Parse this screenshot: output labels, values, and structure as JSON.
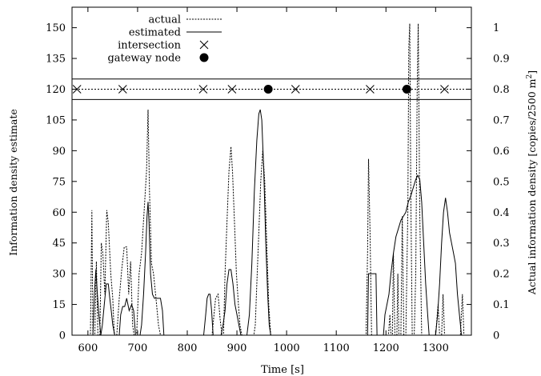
{
  "chart_data": {
    "type": "line",
    "title": "",
    "xlabel": "Time [s]",
    "ylabel_left": "Information density estimate",
    "ylabel_right_prefix": "Actual information density [copies/2500 m",
    "ylabel_right_sup": "2",
    "ylabel_right_suffix": "]",
    "xlim": [
      568,
      1372
    ],
    "ylim_left": [
      0,
      160
    ],
    "ylim_right": [
      0,
      1.06667
    ],
    "xticks": [
      600,
      700,
      800,
      900,
      1000,
      1100,
      1200,
      1300
    ],
    "xtick_labels": [
      "600",
      "700",
      "800",
      "900",
      "1000",
      "1100",
      "1200",
      "1300"
    ],
    "yticks_left": [
      0,
      15,
      30,
      45,
      60,
      75,
      90,
      105,
      120,
      135,
      150
    ],
    "ytick_labels_left": [
      "0",
      "15",
      "30",
      "45",
      "60",
      "75",
      "90",
      "105",
      "120",
      "135",
      "150"
    ],
    "yticks_right": [
      0,
      0.1,
      0.2,
      0.3,
      0.4,
      0.5,
      0.6,
      0.7,
      0.8,
      0.9,
      1.0
    ],
    "ytick_labels_right": [
      "0",
      "0.1",
      "0.2",
      "0.3",
      "0.4",
      "0.5",
      "0.6",
      "0.7",
      "0.8",
      "0.9",
      "1"
    ],
    "legend": {
      "placement": "top-left",
      "entries": [
        {
          "label": "actual",
          "style": "dotted"
        },
        {
          "label": "estimated",
          "style": "solid"
        },
        {
          "label": "intersection",
          "style": "x-marker"
        },
        {
          "label": "gateway node",
          "style": "filled-circle"
        }
      ]
    },
    "band": {
      "y_center": 120,
      "y_upper": 125,
      "y_lower": 115
    },
    "intersections_x": [
      578,
      670,
      832,
      890,
      1018,
      1168,
      1318
    ],
    "gateways_x": [
      963,
      1242
    ],
    "marker_y": 120,
    "series": [
      {
        "name": "actual",
        "style": "dotted",
        "points": [
          [
            596,
            0
          ],
          [
            605,
            0
          ],
          [
            608,
            61
          ],
          [
            610,
            0
          ],
          [
            614,
            0
          ],
          [
            617,
            36
          ],
          [
            620,
            0
          ],
          [
            624,
            0
          ],
          [
            627,
            45
          ],
          [
            630,
            40
          ],
          [
            634,
            20
          ],
          [
            638,
            61
          ],
          [
            641,
            55
          ],
          [
            646,
            30
          ],
          [
            650,
            18
          ],
          [
            653,
            0
          ],
          [
            658,
            0
          ],
          [
            663,
            18
          ],
          [
            668,
            32
          ],
          [
            673,
            43
          ],
          [
            678,
            43
          ],
          [
            682,
            20
          ],
          [
            686,
            36
          ],
          [
            690,
            5
          ],
          [
            693,
            0
          ],
          [
            698,
            0
          ],
          [
            703,
            30
          ],
          [
            708,
            40
          ],
          [
            713,
            60
          ],
          [
            718,
            80
          ],
          [
            721,
            110
          ],
          [
            724,
            70
          ],
          [
            728,
            35
          ],
          [
            732,
            30
          ],
          [
            737,
            18
          ],
          [
            742,
            5
          ],
          [
            746,
            0
          ],
          [
            850,
            0
          ],
          [
            853,
            8
          ],
          [
            857,
            18
          ],
          [
            862,
            20
          ],
          [
            866,
            8
          ],
          [
            870,
            0
          ],
          [
            873,
            0
          ],
          [
            876,
            30
          ],
          [
            880,
            55
          ],
          [
            884,
            80
          ],
          [
            888,
            92
          ],
          [
            891,
            80
          ],
          [
            895,
            55
          ],
          [
            899,
            30
          ],
          [
            903,
            15
          ],
          [
            906,
            5
          ],
          [
            910,
            0
          ],
          [
            934,
            0
          ],
          [
            937,
            5
          ],
          [
            940,
            25
          ],
          [
            944,
            50
          ],
          [
            948,
            75
          ],
          [
            952,
            90
          ],
          [
            956,
            75
          ],
          [
            960,
            45
          ],
          [
            964,
            15
          ],
          [
            968,
            0
          ],
          [
            1160,
            0
          ],
          [
            1163,
            40
          ],
          [
            1165,
            86
          ],
          [
            1168,
            50
          ],
          [
            1171,
            0
          ],
          [
            1185,
            0
          ],
          [
            1205,
            0
          ],
          [
            1208,
            10
          ],
          [
            1210,
            0
          ],
          [
            1213,
            0
          ],
          [
            1215,
            40
          ],
          [
            1218,
            0
          ],
          [
            1222,
            0
          ],
          [
            1224,
            30
          ],
          [
            1226,
            0
          ],
          [
            1230,
            0
          ],
          [
            1233,
            58
          ],
          [
            1236,
            0
          ],
          [
            1240,
            0
          ],
          [
            1244,
            60
          ],
          [
            1246,
            140
          ],
          [
            1248,
            152
          ],
          [
            1250,
            70
          ],
          [
            1253,
            0
          ],
          [
            1257,
            0
          ],
          [
            1260,
            30
          ],
          [
            1263,
            120
          ],
          [
            1265,
            152
          ],
          [
            1268,
            60
          ],
          [
            1272,
            0
          ],
          [
            1300,
            0
          ],
          [
            1305,
            15
          ],
          [
            1308,
            0
          ],
          [
            1312,
            0
          ],
          [
            1315,
            20
          ],
          [
            1318,
            0
          ],
          [
            1350,
            0
          ],
          [
            1354,
            20
          ],
          [
            1357,
            0
          ]
        ]
      },
      {
        "name": "estimated",
        "style": "solid",
        "points": [
          [
            610,
            0
          ],
          [
            613,
            20
          ],
          [
            616,
            32
          ],
          [
            619,
            20
          ],
          [
            622,
            10
          ],
          [
            626,
            0
          ],
          [
            629,
            5
          ],
          [
            633,
            15
          ],
          [
            637,
            25
          ],
          [
            641,
            25
          ],
          [
            644,
            18
          ],
          [
            647,
            12
          ],
          [
            650,
            5
          ],
          [
            654,
            0
          ],
          [
            663,
            0
          ],
          [
            666,
            10
          ],
          [
            670,
            14
          ],
          [
            674,
            14
          ],
          [
            678,
            18
          ],
          [
            683,
            12
          ],
          [
            688,
            15
          ],
          [
            692,
            12
          ],
          [
            696,
            0
          ],
          [
            705,
            0
          ],
          [
            708,
            5
          ],
          [
            712,
            20
          ],
          [
            716,
            40
          ],
          [
            719,
            58
          ],
          [
            721,
            65
          ],
          [
            723,
            55
          ],
          [
            726,
            30
          ],
          [
            730,
            20
          ],
          [
            734,
            18
          ],
          [
            740,
            18
          ],
          [
            746,
            18
          ],
          [
            750,
            12
          ],
          [
            753,
            0
          ],
          [
            833,
            0
          ],
          [
            837,
            10
          ],
          [
            840,
            18
          ],
          [
            843,
            20
          ],
          [
            846,
            20
          ],
          [
            849,
            12
          ],
          [
            852,
            0
          ],
          [
            868,
            0
          ],
          [
            872,
            5
          ],
          [
            876,
            12
          ],
          [
            880,
            25
          ],
          [
            884,
            32
          ],
          [
            888,
            32
          ],
          [
            892,
            25
          ],
          [
            896,
            15
          ],
          [
            900,
            10
          ],
          [
            904,
            5
          ],
          [
            908,
            0
          ],
          [
            920,
            0
          ],
          [
            925,
            10
          ],
          [
            930,
            35
          ],
          [
            935,
            70
          ],
          [
            940,
            95
          ],
          [
            944,
            108
          ],
          [
            947,
            110
          ],
          [
            950,
            105
          ],
          [
            954,
            80
          ],
          [
            958,
            45
          ],
          [
            962,
            20
          ],
          [
            965,
            5
          ],
          [
            968,
            0
          ],
          [
            1163,
            0
          ],
          [
            1165,
            30
          ],
          [
            1180,
            30
          ],
          [
            1182,
            0
          ],
          [
            1195,
            0
          ],
          [
            1198,
            10
          ],
          [
            1202,
            15
          ],
          [
            1206,
            20
          ],
          [
            1210,
            30
          ],
          [
            1215,
            40
          ],
          [
            1220,
            48
          ],
          [
            1225,
            52
          ],
          [
            1230,
            56
          ],
          [
            1235,
            58
          ],
          [
            1240,
            60
          ],
          [
            1245,
            65
          ],
          [
            1250,
            68
          ],
          [
            1255,
            72
          ],
          [
            1260,
            76
          ],
          [
            1264,
            78
          ],
          [
            1268,
            76
          ],
          [
            1272,
            65
          ],
          [
            1276,
            45
          ],
          [
            1280,
            25
          ],
          [
            1284,
            10
          ],
          [
            1287,
            0
          ],
          [
            1300,
            0
          ],
          [
            1304,
            10
          ],
          [
            1308,
            25
          ],
          [
            1312,
            45
          ],
          [
            1316,
            60
          ],
          [
            1320,
            67
          ],
          [
            1324,
            60
          ],
          [
            1328,
            50
          ],
          [
            1332,
            45
          ],
          [
            1336,
            40
          ],
          [
            1340,
            35
          ],
          [
            1344,
            20
          ],
          [
            1348,
            10
          ],
          [
            1352,
            0
          ]
        ]
      }
    ]
  }
}
